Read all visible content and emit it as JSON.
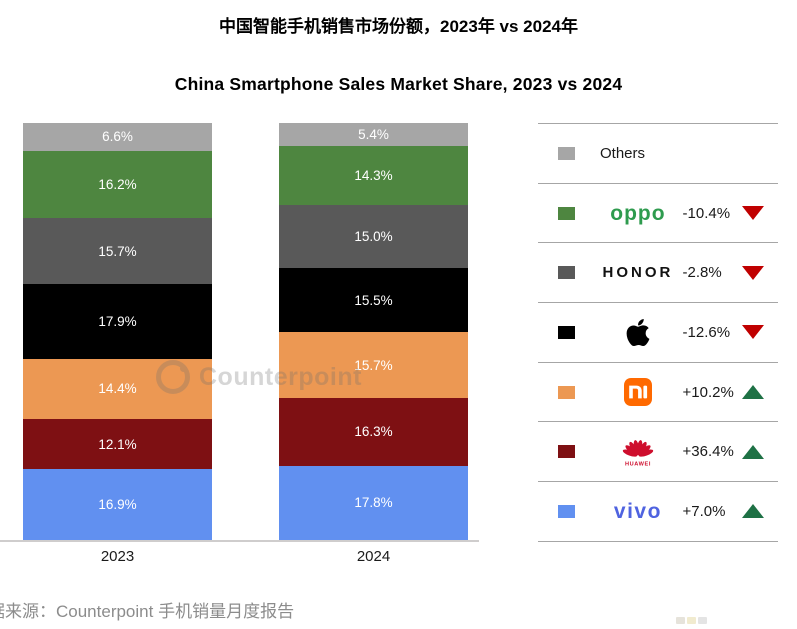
{
  "titles": {
    "zh": "中国智能手机销售市场份额，2023年 vs 2024年",
    "en": "China Smartphone Sales Market Share, 2023 vs 2024"
  },
  "watermark": {
    "text": "Counterpoint"
  },
  "source_note": "据来源：Counterpoint 手机销量月度报告",
  "colors": {
    "trend_up": "#1E7145",
    "trend_down": "#C00000",
    "axis_line": "#cfcdcd",
    "legend_border": "#a6a6a6"
  },
  "chart_data": {
    "type": "bar",
    "stacked": true,
    "orientation": "vertical",
    "unit": "%",
    "legend_position": "right",
    "categories": [
      "2023",
      "2024"
    ],
    "series": [
      {
        "key": "others",
        "name": "Others",
        "color": "#A6A6A6",
        "values": [
          6.6,
          5.4
        ],
        "change": null,
        "direction": null
      },
      {
        "key": "oppo",
        "name": "OPPO",
        "color": "#4E8640",
        "values": [
          16.2,
          14.3
        ],
        "change": "-10.4%",
        "direction": "down"
      },
      {
        "key": "honor",
        "name": "HONOR",
        "color": "#595959",
        "values": [
          15.7,
          15.0
        ],
        "change": "-2.8%",
        "direction": "down"
      },
      {
        "key": "apple",
        "name": "Apple",
        "color": "#000000",
        "values": [
          17.9,
          15.5
        ],
        "change": "-12.6%",
        "direction": "down"
      },
      {
        "key": "xiaomi",
        "name": "Mi",
        "color": "#EC9853",
        "values": [
          14.4,
          15.7
        ],
        "change": "+10.2%",
        "direction": "up"
      },
      {
        "key": "huawei",
        "name": "HUAWEI",
        "color": "#7E1013",
        "values": [
          12.1,
          16.3
        ],
        "change": "+36.4%",
        "direction": "up"
      },
      {
        "key": "vivo",
        "name": "vivo",
        "color": "#6190F0",
        "values": [
          16.9,
          17.8
        ],
        "change": "+7.0%",
        "direction": "up"
      }
    ]
  }
}
